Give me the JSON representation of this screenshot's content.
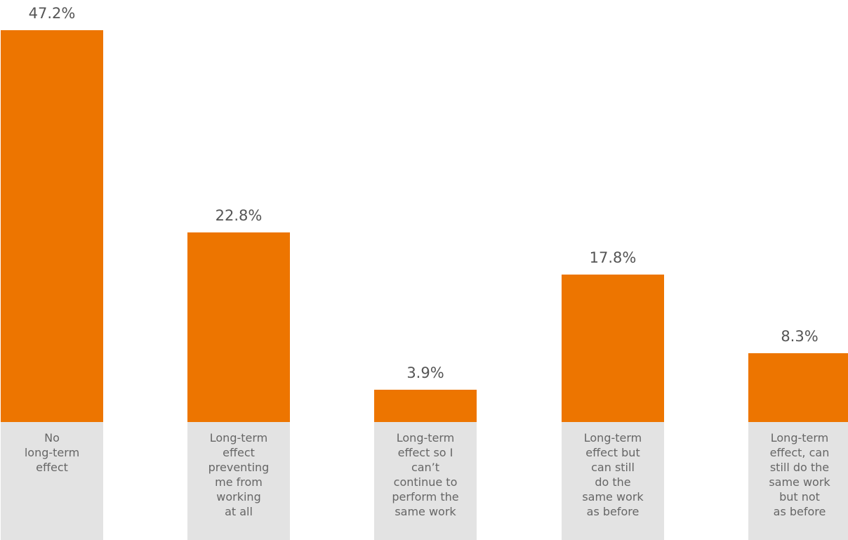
{
  "colors": {
    "bar": "#ED7500",
    "category_box": "#E3E3E3",
    "value_text": "#555555",
    "category_text": "#666666"
  },
  "chart_data": {
    "type": "bar",
    "categories": [
      "No long-term effect",
      "Long-term effect preventing me from working at all",
      "Long-term effect so I can’t continue to perform the same work",
      "Long-term effect but can still do the same work as before",
      "Long-term effect, can still do the same work but not as before"
    ],
    "category_lines": [
      [
        "No",
        "long-term",
        "effect"
      ],
      [
        "Long-term",
        "effect",
        "preventing",
        "me from",
        "working",
        "at all"
      ],
      [
        "Long-term",
        "effect so I",
        "can’t",
        "continue to",
        "perform the",
        "same work"
      ],
      [
        "Long-term",
        "effect but",
        "can still",
        "do the",
        "same work",
        "as before"
      ],
      [
        "Long-term",
        "effect, can",
        "still do the",
        "same work",
        "but not",
        "as before"
      ]
    ],
    "values": [
      47.2,
      22.8,
      3.9,
      17.8,
      8.3
    ],
    "value_labels": [
      "47.2%",
      "22.8%",
      "3.9%",
      "17.8%",
      "8.3%"
    ],
    "title": "",
    "xlabel": "",
    "ylabel": "",
    "ylim": [
      0,
      47.2
    ],
    "grid": false,
    "legend": "none"
  }
}
